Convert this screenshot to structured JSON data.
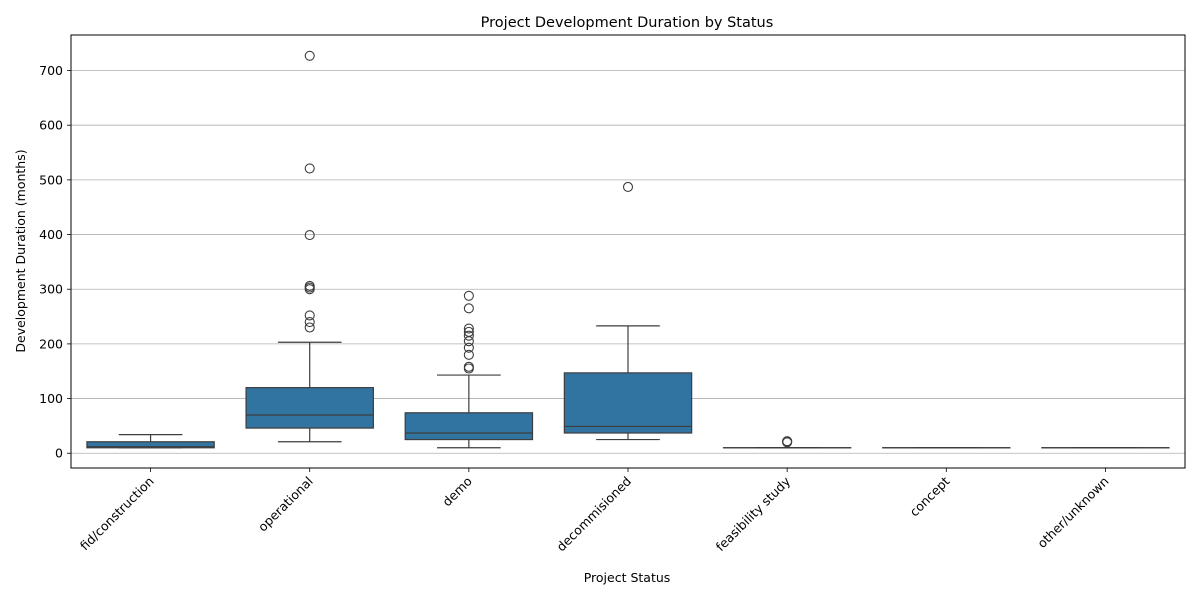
{
  "chart_data": {
    "type": "box",
    "title": "Project Development Duration by Status",
    "xlabel": "Project Status",
    "ylabel": "Development Duration (months)",
    "ylim": [
      -27,
      765
    ],
    "yticks": [
      0,
      100,
      200,
      300,
      400,
      500,
      600,
      700
    ],
    "grid": "horizontal",
    "box_color": "#3274a1",
    "line_color": "#3d3d3d",
    "categories": [
      "fid/construction",
      "operational",
      "demo",
      "decommisioned",
      "feasibility study",
      "concept",
      "other/unknown"
    ],
    "boxes": [
      {
        "category": "fid/construction",
        "whisker_low": 10,
        "q1": 10,
        "median": 12,
        "q3": 21,
        "whisker_high": 34,
        "outliers": []
      },
      {
        "category": "operational",
        "whisker_low": 21,
        "q1": 46,
        "median": 70,
        "q3": 120,
        "whisker_high": 203,
        "outliers": [
          230,
          240,
          252,
          300,
          303,
          306,
          399,
          521,
          727
        ]
      },
      {
        "category": "demo",
        "whisker_low": 10,
        "q1": 25,
        "median": 37,
        "q3": 74,
        "whisker_high": 143,
        "outliers": [
          155,
          158,
          180,
          193,
          205,
          215,
          222,
          228,
          265,
          288
        ]
      },
      {
        "category": "decommisioned",
        "whisker_low": 25,
        "q1": 37,
        "median": 49,
        "q3": 147,
        "whisker_high": 233,
        "outliers": [
          487
        ]
      },
      {
        "category": "feasibility study",
        "whisker_low": 10,
        "q1": 10,
        "median": 10,
        "q3": 10,
        "whisker_high": 10,
        "outliers": [
          20,
          21,
          22
        ]
      },
      {
        "category": "concept",
        "whisker_low": 10,
        "q1": 10,
        "median": 10,
        "q3": 10,
        "whisker_high": 10,
        "outliers": []
      },
      {
        "category": "other/unknown",
        "whisker_low": 10,
        "q1": 10,
        "median": 10,
        "q3": 10,
        "whisker_high": 10,
        "outliers": []
      }
    ]
  }
}
